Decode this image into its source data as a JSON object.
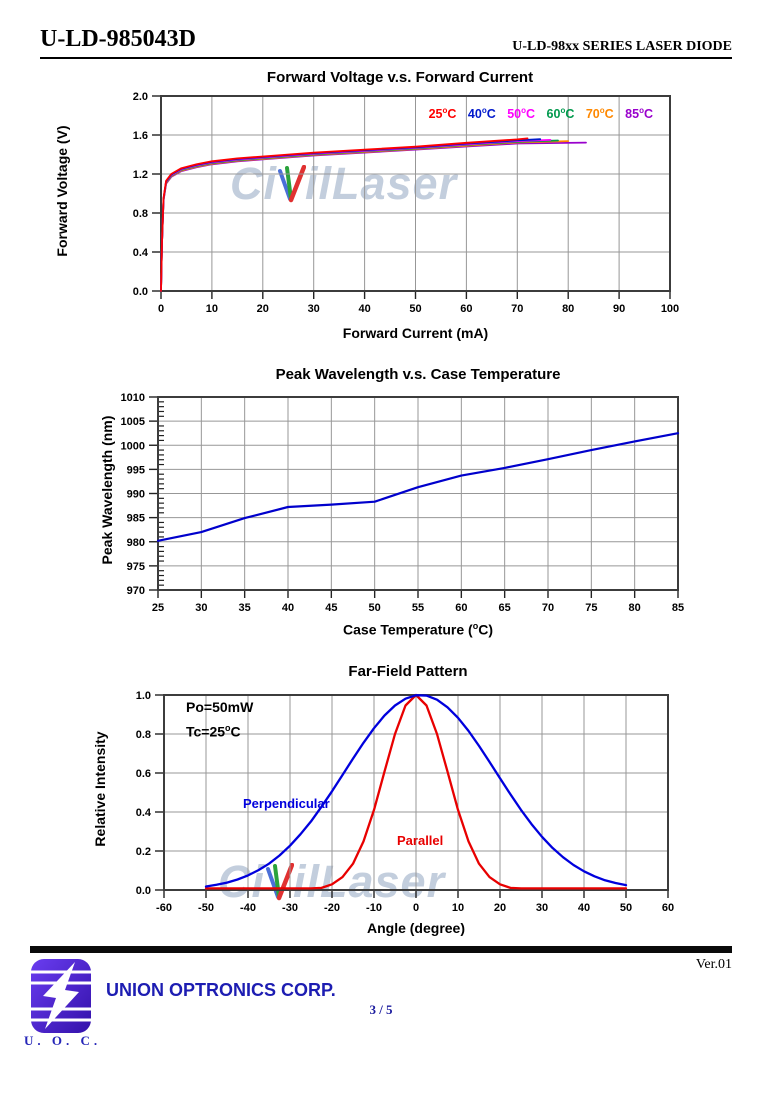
{
  "header": {
    "model": "U-LD-985043D",
    "series": "U-LD-98xx SERIES LASER DIODE"
  },
  "watermark": {
    "prefix": "Ci",
    "suffix": "ilLaser"
  },
  "footer": {
    "version": "Ver.01",
    "company": "UNION OPTRONICS CORP.",
    "page_number": "3 / 5",
    "logo_caption": "U. O. C."
  },
  "chart_data": [
    {
      "type": "line",
      "title": "Forward Voltage v.s. Forward Current",
      "xlabel": "Forward Current (mA)",
      "ylabel": "Forward Voltage (V)",
      "xlim": [
        0,
        100
      ],
      "ylim": [
        0.0,
        2.0
      ],
      "xticks": [
        0,
        10,
        20,
        30,
        40,
        50,
        60,
        70,
        80,
        90,
        100
      ],
      "xtick_labels": [
        "0",
        "10",
        "20",
        "30",
        "40",
        "50",
        "60",
        "70",
        "80",
        "90",
        "100"
      ],
      "yticks": [
        0,
        0.4,
        0.8,
        1.2,
        1.6,
        2
      ],
      "ytick_labels": [
        "0.0",
        "0.4",
        "0.8",
        "1.2",
        "1.6",
        "2.0"
      ],
      "grid": true,
      "legend": {
        "position": "top-right",
        "degree_mark": "o",
        "unit": "C",
        "items": [
          {
            "value": "25",
            "color": "#ff0000"
          },
          {
            "value": "40",
            "color": "#0018cc"
          },
          {
            "value": "50",
            "color": "#ff00ff"
          },
          {
            "value": "60",
            "color": "#00994d"
          },
          {
            "value": "70",
            "color": "#ff8800"
          },
          {
            "value": "85",
            "color": "#9900cc"
          }
        ]
      },
      "series": [
        {
          "name": "25C",
          "color": "#ff0000",
          "points": [
            [
              0,
              0
            ],
            [
              0.2,
              0.5
            ],
            [
              0.5,
              0.95
            ],
            [
              1,
              1.13
            ],
            [
              2,
              1.2
            ],
            [
              4,
              1.26
            ],
            [
              7,
              1.3
            ],
            [
              10,
              1.33
            ],
            [
              15,
              1.36
            ],
            [
              20,
              1.38
            ],
            [
              30,
              1.42
            ],
            [
              40,
              1.45
            ],
            [
              50,
              1.48
            ],
            [
              60,
              1.52
            ],
            [
              70,
              1.555
            ],
            [
              72,
              1.565
            ]
          ]
        },
        {
          "name": "40C",
          "color": "#0018cc",
          "points": [
            [
              0,
              0
            ],
            [
              0.2,
              0.5
            ],
            [
              0.5,
              0.945
            ],
            [
              1,
              1.124
            ],
            [
              2,
              1.194
            ],
            [
              4,
              1.254
            ],
            [
              7,
              1.294
            ],
            [
              10,
              1.324
            ],
            [
              15,
              1.354
            ],
            [
              20,
              1.374
            ],
            [
              30,
              1.414
            ],
            [
              40,
              1.444
            ],
            [
              50,
              1.474
            ],
            [
              60,
              1.512
            ],
            [
              70,
              1.545
            ],
            [
              74.5,
              1.557
            ]
          ]
        },
        {
          "name": "50C",
          "color": "#ff00ff",
          "points": [
            [
              0,
              0
            ],
            [
              0.2,
              0.5
            ],
            [
              0.5,
              0.94
            ],
            [
              1,
              1.118
            ],
            [
              2,
              1.188
            ],
            [
              4,
              1.248
            ],
            [
              7,
              1.288
            ],
            [
              10,
              1.318
            ],
            [
              15,
              1.348
            ],
            [
              20,
              1.368
            ],
            [
              30,
              1.408
            ],
            [
              40,
              1.438
            ],
            [
              50,
              1.468
            ],
            [
              60,
              1.505
            ],
            [
              70,
              1.537
            ],
            [
              76.5,
              1.55
            ]
          ]
        },
        {
          "name": "60C",
          "color": "#00994d",
          "points": [
            [
              0,
              0
            ],
            [
              0.2,
              0.5
            ],
            [
              0.5,
              0.935
            ],
            [
              1,
              1.112
            ],
            [
              2,
              1.182
            ],
            [
              4,
              1.242
            ],
            [
              7,
              1.282
            ],
            [
              10,
              1.312
            ],
            [
              15,
              1.342
            ],
            [
              20,
              1.362
            ],
            [
              30,
              1.402
            ],
            [
              40,
              1.432
            ],
            [
              50,
              1.462
            ],
            [
              60,
              1.498
            ],
            [
              70,
              1.53
            ],
            [
              78,
              1.544
            ]
          ]
        },
        {
          "name": "70C",
          "color": "#ff8800",
          "points": [
            [
              0,
              0
            ],
            [
              0.2,
              0.5
            ],
            [
              0.5,
              0.93
            ],
            [
              1,
              1.106
            ],
            [
              2,
              1.176
            ],
            [
              4,
              1.236
            ],
            [
              7,
              1.276
            ],
            [
              10,
              1.306
            ],
            [
              15,
              1.336
            ],
            [
              20,
              1.356
            ],
            [
              30,
              1.396
            ],
            [
              40,
              1.426
            ],
            [
              50,
              1.456
            ],
            [
              60,
              1.49
            ],
            [
              70,
              1.523
            ],
            [
              80,
              1.537
            ]
          ]
        },
        {
          "name": "85C",
          "color": "#9900cc",
          "points": [
            [
              0,
              0
            ],
            [
              0.2,
              0.5
            ],
            [
              0.5,
              0.925
            ],
            [
              1,
              1.1
            ],
            [
              2,
              1.17
            ],
            [
              4,
              1.23
            ],
            [
              7,
              1.27
            ],
            [
              10,
              1.3
            ],
            [
              15,
              1.33
            ],
            [
              20,
              1.35
            ],
            [
              30,
              1.39
            ],
            [
              40,
              1.42
            ],
            [
              50,
              1.45
            ],
            [
              60,
              1.482
            ],
            [
              70,
              1.513
            ],
            [
              83.5,
              1.522
            ]
          ]
        }
      ]
    },
    {
      "type": "line",
      "title": "Peak Wavelength v.s. Case Temperature",
      "xlabel": "Case Temperature (°C)",
      "xlabel_pre": "Case Temperature (",
      "xlabel_sup": "o",
      "xlabel_post": "C)",
      "ylabel": "Peak Wavelength (nm)",
      "xlim": [
        25,
        85
      ],
      "ylim": [
        970,
        1010
      ],
      "xticks": [
        25,
        30,
        35,
        40,
        45,
        50,
        55,
        60,
        65,
        70,
        75,
        80,
        85
      ],
      "xtick_labels": [
        "25",
        "30",
        "35",
        "40",
        "45",
        "50",
        "55",
        "60",
        "65",
        "70",
        "75",
        "80",
        "85"
      ],
      "yticks": [
        970,
        975,
        980,
        985,
        990,
        995,
        1000,
        1005,
        1010
      ],
      "ytick_labels": [
        "970",
        "975",
        "980",
        "985",
        "990",
        "995",
        "1000",
        "1005",
        "1010"
      ],
      "y_minor_step": 1,
      "grid": true,
      "series": [
        {
          "name": "Peak Wavelength",
          "color": "#0000cc",
          "points": [
            [
              25,
              980.2
            ],
            [
              30,
              982
            ],
            [
              35,
              984.9
            ],
            [
              40,
              987.2
            ],
            [
              45,
              987.7
            ],
            [
              50,
              988.3
            ],
            [
              55,
              991.3
            ],
            [
              60,
              993.7
            ],
            [
              65,
              995.3
            ],
            [
              70,
              997.1
            ],
            [
              75,
              999
            ],
            [
              80,
              1000.8
            ],
            [
              85,
              1002.5
            ]
          ]
        }
      ]
    },
    {
      "type": "line",
      "title": "Far-Field Pattern",
      "xlabel": "Angle (degree)",
      "ylabel": "Relative Intensity",
      "xlim": [
        -60,
        60
      ],
      "ylim": [
        0.0,
        1.0
      ],
      "xticks": [
        -60,
        -50,
        -40,
        -30,
        -20,
        -10,
        0,
        10,
        20,
        30,
        40,
        50,
        60
      ],
      "xtick_labels": [
        "-60",
        "-50",
        "-40",
        "-30",
        "-20",
        "-10",
        "0",
        "10",
        "20",
        "30",
        "40",
        "50",
        "60"
      ],
      "yticks": [
        0,
        0.2,
        0.4,
        0.6,
        0.8,
        1
      ],
      "ytick_labels": [
        "0.0",
        "0.2",
        "0.4",
        "0.6",
        "0.8",
        "1.0"
      ],
      "grid": true,
      "annotations": {
        "po": "Po=50mW",
        "tc_pre": "Tc=25",
        "tc_sup": "o",
        "tc_post": "C"
      },
      "series": [
        {
          "name": "Perpendicular",
          "label": "Perpendicular",
          "color": "#0000dd",
          "points": [
            [
              -50,
              0.018
            ],
            [
              -47.5,
              0.027
            ],
            [
              -45,
              0.038
            ],
            [
              -42.5,
              0.054
            ],
            [
              -40,
              0.075
            ],
            [
              -37.5,
              0.102
            ],
            [
              -35,
              0.135
            ],
            [
              -32.5,
              0.177
            ],
            [
              -30,
              0.227
            ],
            [
              -27.5,
              0.286
            ],
            [
              -25,
              0.352
            ],
            [
              -22.5,
              0.427
            ],
            [
              -20,
              0.506
            ],
            [
              -17.5,
              0.59
            ],
            [
              -15,
              0.674
            ],
            [
              -12.5,
              0.755
            ],
            [
              -10,
              0.83
            ],
            [
              -7.5,
              0.895
            ],
            [
              -5,
              0.946
            ],
            [
              -2.5,
              0.981
            ],
            [
              0,
              0.999
            ],
            [
              2.5,
              0.997
            ],
            [
              5,
              0.976
            ],
            [
              7.5,
              0.937
            ],
            [
              10,
              0.883
            ],
            [
              12.5,
              0.816
            ],
            [
              15,
              0.739
            ],
            [
              17.5,
              0.657
            ],
            [
              20,
              0.573
            ],
            [
              22.5,
              0.49
            ],
            [
              25,
              0.411
            ],
            [
              27.5,
              0.338
            ],
            [
              30,
              0.273
            ],
            [
              32.5,
              0.216
            ],
            [
              35,
              0.168
            ],
            [
              37.5,
              0.128
            ],
            [
              40,
              0.096
            ],
            [
              42.5,
              0.07
            ],
            [
              45,
              0.05
            ],
            [
              47.5,
              0.036
            ],
            [
              50,
              0.025
            ]
          ]
        },
        {
          "name": "Parallel",
          "label": "Parallel",
          "color": "#e80000",
          "points": [
            [
              -50,
              0.008
            ],
            [
              -45,
              0.008
            ],
            [
              -40,
              0.008
            ],
            [
              -35,
              0.008
            ],
            [
              -30,
              0.008
            ],
            [
              -27.5,
              0.008
            ],
            [
              -25,
              0.008
            ],
            [
              -22.5,
              0.011
            ],
            [
              -20,
              0.029
            ],
            [
              -17.5,
              0.066
            ],
            [
              -15,
              0.135
            ],
            [
              -12.5,
              0.249
            ],
            [
              -10,
              0.411
            ],
            [
              -7.5,
              0.607
            ],
            [
              -5,
              0.8
            ],
            [
              -2.5,
              0.946
            ],
            [
              0,
              1.0
            ],
            [
              2.5,
              0.946
            ],
            [
              5,
              0.8
            ],
            [
              7.5,
              0.607
            ],
            [
              10,
              0.411
            ],
            [
              12.5,
              0.249
            ],
            [
              15,
              0.135
            ],
            [
              17.5,
              0.066
            ],
            [
              20,
              0.029
            ],
            [
              22.5,
              0.011
            ],
            [
              25,
              0.008
            ],
            [
              27.5,
              0.008
            ],
            [
              30,
              0.008
            ],
            [
              35,
              0.008
            ],
            [
              40,
              0.008
            ],
            [
              45,
              0.008
            ],
            [
              50,
              0.008
            ]
          ]
        }
      ]
    }
  ]
}
